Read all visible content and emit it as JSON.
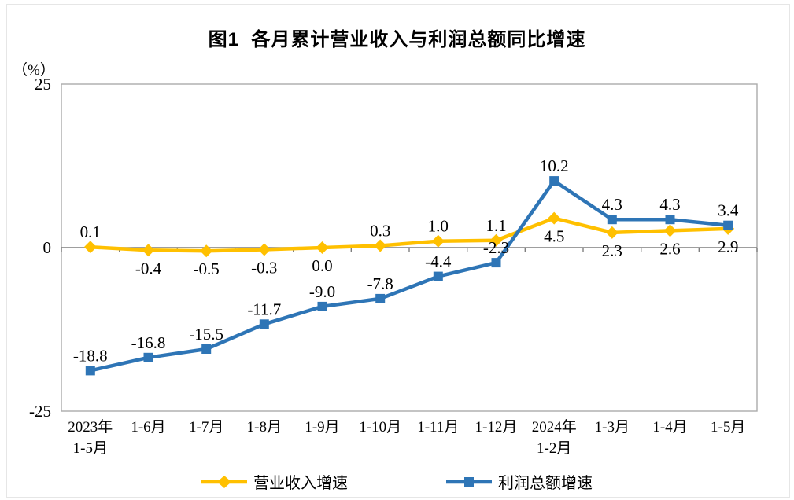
{
  "chart_data": {
    "type": "line",
    "title": "图1  各月累计营业收入与利润总额同比增速",
    "unit_label": "（%）",
    "ylim": [
      -25,
      25
    ],
    "y_ticks": [
      {
        "value": 25,
        "label": "25"
      },
      {
        "value": 0,
        "label": "0"
      },
      {
        "value": -25,
        "label": "-25"
      }
    ],
    "grid": false,
    "legend_position": "bottom",
    "categories": [
      "2023年\n1-5月",
      "1-6月",
      "1-7月",
      "1-8月",
      "1-9月",
      "1-10月",
      "1-11月",
      "1-12月",
      "2024年\n1-2月",
      "1-3月",
      "1-4月",
      "1-5月"
    ],
    "series": [
      {
        "name": "营业收入增速",
        "color": "#FFC000",
        "marker": "diamond",
        "values": [
          0.1,
          -0.4,
          -0.5,
          -0.3,
          0.0,
          0.3,
          1.0,
          1.1,
          4.5,
          2.3,
          2.6,
          2.9
        ],
        "labels": [
          "0.1",
          "-0.4",
          "-0.5",
          "-0.3",
          "0.0",
          "0.3",
          "1.0",
          "1.1",
          "4.5",
          "2.3",
          "2.6",
          "2.9"
        ],
        "label_sides": [
          "above",
          "below",
          "below",
          "below",
          "below",
          "above",
          "above",
          "above",
          "below",
          "below",
          "below",
          "below"
        ]
      },
      {
        "name": "利润总额增速",
        "color": "#2E75B6",
        "marker": "square",
        "values": [
          -18.8,
          -16.8,
          -15.5,
          -11.7,
          -9.0,
          -7.8,
          -4.4,
          -2.3,
          10.2,
          4.3,
          4.3,
          3.4
        ],
        "labels": [
          "-18.8",
          "-16.8",
          "-15.5",
          "-11.7",
          "-9.0",
          "-7.8",
          "-4.4",
          "-2.3",
          "10.2",
          "4.3",
          "4.3",
          "3.4"
        ],
        "label_sides": [
          "above",
          "above",
          "above",
          "above",
          "above",
          "above",
          "above",
          "above",
          "above",
          "above",
          "above",
          "above"
        ]
      }
    ],
    "axis_color": "#7F7F7F",
    "frame_color": "#ABABAB"
  }
}
